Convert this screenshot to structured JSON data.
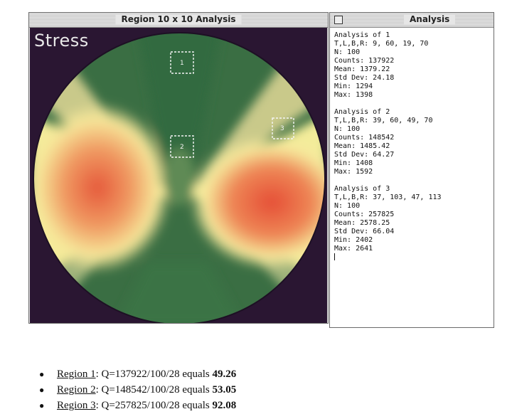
{
  "left_window": {
    "title": "Region 10 x 10 Analysis",
    "canvas_label": "Stress",
    "roi_labels": [
      "1",
      "2",
      "3"
    ]
  },
  "right_window": {
    "title": "Analysis",
    "blocks": [
      {
        "heading": "Analysis of 1",
        "tlbr": "T,L,B,R: 9, 60, 19, 70",
        "n": "N:     100",
        "counts": "Counts: 137922",
        "mean": "Mean:  1379.22",
        "std": "Std Dev: 24.18",
        "min": "Min:   1294",
        "max": "Max:   1398"
      },
      {
        "heading": "Analysis of 2",
        "tlbr": "T,L,B,R: 39, 60, 49, 70",
        "n": "N:     100",
        "counts": "Counts: 148542",
        "mean": "Mean:  1485.42",
        "std": "Std Dev: 64.27",
        "min": "Min:   1408",
        "max": "Max:   1592"
      },
      {
        "heading": "Analysis of 3",
        "tlbr": "T,L,B,R: 37, 103, 47, 113",
        "n": "N:     100",
        "counts": "Counts: 257825",
        "mean": "Mean:  2578.25",
        "std": "Std Dev: 66.04",
        "min": "Min:   2402",
        "max": "Max:   2641"
      }
    ]
  },
  "bullets": [
    {
      "region": "Region 1",
      "formula": ": Q=137922/100/28 equals ",
      "result": "49.26"
    },
    {
      "region": "Region 2",
      "formula": ": Q=148542/100/28 equals ",
      "result": "53.05"
    },
    {
      "region": "Region 3",
      "formula": ": Q=257825/100/28 equals ",
      "result": "92.08"
    }
  ],
  "colors": {
    "background_dark": "#2a1632",
    "green_dark": "#2f6a3f",
    "green_mid": "#5f8f55",
    "yellow": "#f4ee9a",
    "orange": "#f2a263",
    "red": "#e75a3c"
  }
}
